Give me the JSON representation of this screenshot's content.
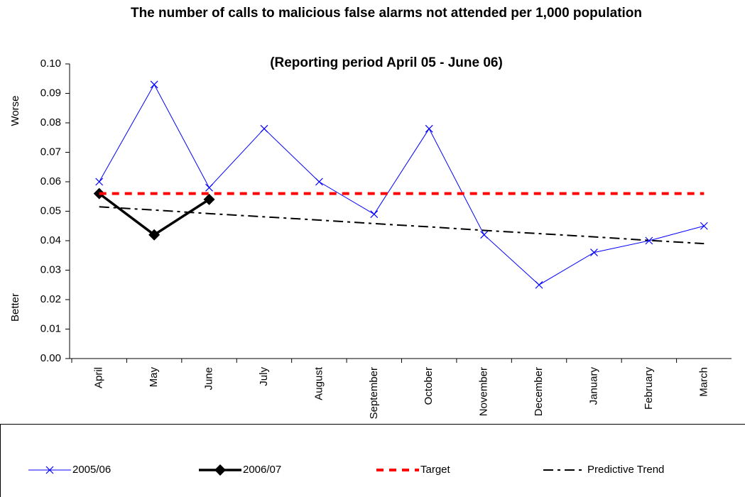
{
  "chart_data": {
    "type": "line",
    "title": "The number of calls to malicious false alarms not attended per 1,000 population",
    "subtitle": "(Reporting period  April 05 - June 06)",
    "y_label_top": "Worse",
    "y_label_bottom": "Better",
    "categories": [
      "April",
      "May",
      "June",
      "July",
      "August",
      "September",
      "October",
      "November",
      "December",
      "January",
      "February",
      "March"
    ],
    "series": [
      {
        "name": "2005/06",
        "color": "#0000ff",
        "width": 1,
        "marker": "x",
        "dash": "none",
        "values": [
          0.06,
          0.093,
          0.058,
          0.078,
          0.06,
          0.049,
          0.078,
          0.042,
          0.025,
          0.036,
          0.04,
          0.045
        ]
      },
      {
        "name": "2006/07",
        "color": "#000000",
        "width": 3.5,
        "marker": "diamond",
        "dash": "none",
        "values": [
          0.056,
          0.042,
          0.054,
          null,
          null,
          null,
          null,
          null,
          null,
          null,
          null,
          null
        ]
      },
      {
        "name": "Target",
        "color": "#ff0000",
        "width": 4,
        "marker": "none",
        "dash": "10 8",
        "values": [
          0.056,
          0.056,
          0.056,
          0.056,
          0.056,
          0.056,
          0.056,
          0.056,
          0.056,
          0.056,
          0.056,
          0.056
        ]
      },
      {
        "name": "Predictive Trend",
        "color": "#000000",
        "width": 2,
        "marker": "none",
        "dash": "14 6 4 6",
        "values": [
          0.0515,
          0.0504,
          0.0492,
          0.0481,
          0.047,
          0.0458,
          0.0447,
          0.0435,
          0.0424,
          0.0413,
          0.0401,
          0.039
        ]
      }
    ],
    "ylim": [
      0,
      0.1
    ],
    "yticks": [
      {
        "value": 0,
        "label": "0.00"
      },
      0.01,
      0.02,
      0.03,
      0.04,
      0.05,
      0.06,
      0.07,
      0.08,
      0.09,
      {
        "value": 0.1,
        "label": "0.10"
      }
    ],
    "grid": false,
    "legend": "bottom"
  }
}
